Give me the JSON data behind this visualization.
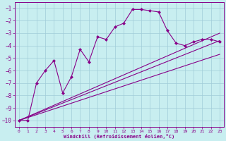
{
  "xlabel": "Windchill (Refroidissement éolien,°C)",
  "bg_color": "#c8eef0",
  "grid_color": "#a0ccd8",
  "line_color": "#880088",
  "xlim": [
    -0.5,
    23.5
  ],
  "ylim": [
    -10.5,
    -0.5
  ],
  "yticks": [
    -10,
    -9,
    -8,
    -7,
    -6,
    -5,
    -4,
    -3,
    -2,
    -1
  ],
  "xticks": [
    0,
    1,
    2,
    3,
    4,
    5,
    6,
    7,
    8,
    9,
    10,
    11,
    12,
    13,
    14,
    15,
    16,
    17,
    18,
    19,
    20,
    21,
    22,
    23
  ],
  "series1_x": [
    0,
    1,
    2,
    3,
    4,
    5,
    6,
    7,
    8,
    9,
    10,
    11,
    12,
    13,
    14,
    15,
    16,
    17,
    18,
    19,
    20,
    21,
    22,
    23
  ],
  "series1_y": [
    -10.0,
    -10.0,
    -7.0,
    -6.0,
    -5.2,
    -7.8,
    -6.5,
    -4.3,
    -5.3,
    -3.3,
    -3.5,
    -2.5,
    -2.2,
    -1.1,
    -1.1,
    -1.2,
    -1.3,
    -2.8,
    -3.8,
    -4.0,
    -3.7,
    -3.5,
    -3.5,
    -3.7
  ],
  "series2_x": [
    0,
    23
  ],
  "series2_y": [
    -10.0,
    -4.7
  ],
  "series3_x": [
    0,
    23
  ],
  "series3_y": [
    -10.0,
    -3.6
  ],
  "series4_x": [
    0,
    23
  ],
  "series4_y": [
    -10.0,
    -3.0
  ],
  "linewidth": 0.8
}
